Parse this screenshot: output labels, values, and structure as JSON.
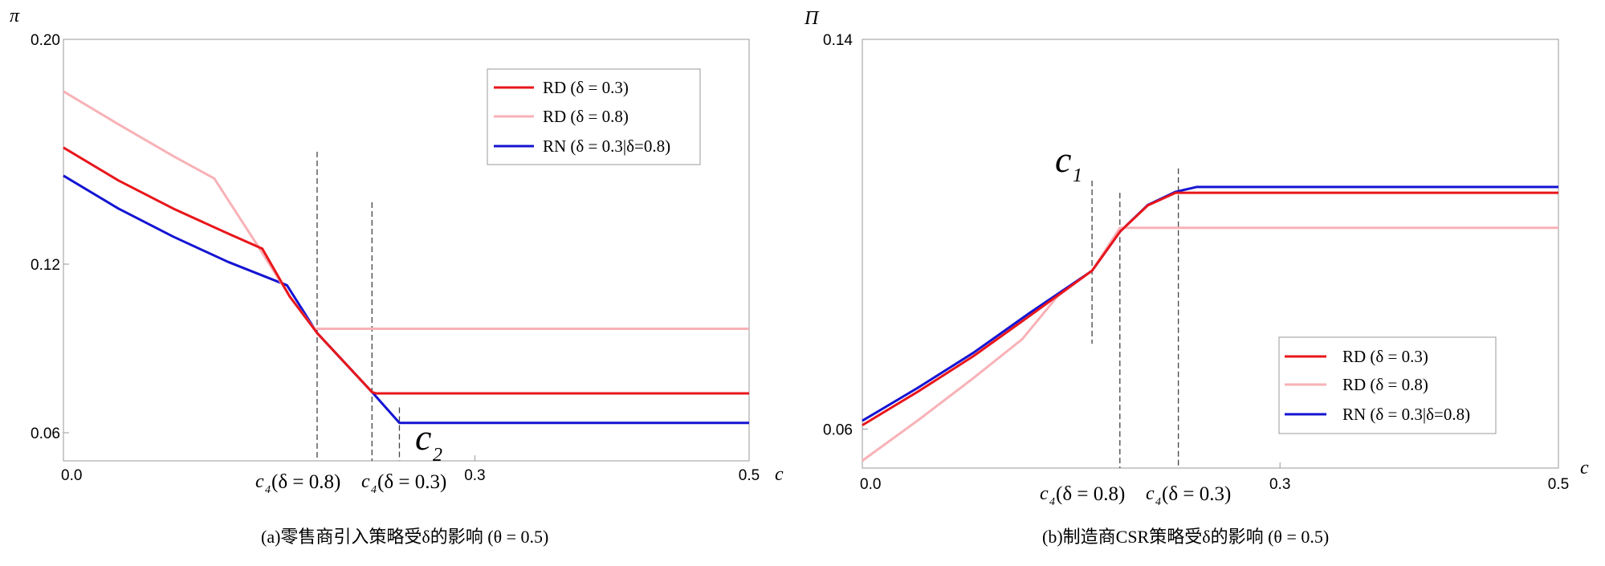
{
  "chart_data": [
    {
      "type": "line",
      "panel": "a",
      "caption": "(a)零售商引入策略受δ的影响 (θ = 0.5)",
      "ylabel": "π",
      "xlabel": "c",
      "xlim": [
        0,
        0.5
      ],
      "ylim": [
        0.05,
        0.2
      ],
      "yticks": [
        "0.20",
        "0.12",
        "0.06"
      ],
      "ytick_values": [
        0.2,
        0.12,
        0.06
      ],
      "xticks": [
        "0.0",
        "0.3",
        "0.5"
      ],
      "xtick_values": [
        0.0,
        0.3,
        0.5
      ],
      "series": [
        {
          "name": "RD (δ = 0.3)",
          "color": "#e8161b",
          "x": [
            0,
            0.04,
            0.08,
            0.12,
            0.145,
            0.165,
            0.185,
            0.225,
            0.228,
            0.5
          ],
          "y": [
            0.1615,
            0.1498,
            0.1398,
            0.1309,
            0.1255,
            0.1085,
            0.0955,
            0.0745,
            0.074,
            0.074
          ]
        },
        {
          "name": "RD (δ = 0.8)",
          "color": "#f8b2b7",
          "x": [
            0,
            0.04,
            0.08,
            0.11,
            0.145,
            0.165,
            0.183,
            0.187,
            0.5
          ],
          "y": [
            0.1815,
            0.1698,
            0.1585,
            0.1505,
            0.124,
            0.1085,
            0.097,
            0.097,
            0.097
          ]
        },
        {
          "name": "RN (δ = 0.3|δ=0.8)",
          "color": "#1414d2",
          "x": [
            0,
            0.04,
            0.08,
            0.12,
            0.163,
            0.185,
            0.225,
            0.245,
            0.5
          ],
          "y": [
            0.1515,
            0.1398,
            0.1298,
            0.1208,
            0.1125,
            0.0955,
            0.0745,
            0.0635,
            0.0635
          ]
        }
      ],
      "vlines": [
        {
          "x": 0.185,
          "y_top": 0.16
        },
        {
          "x": 0.225,
          "y_top": 0.142
        },
        {
          "x": 0.245,
          "y_top": 0.069
        }
      ],
      "annotations": [
        "c",
        "2",
        "c",
        "4",
        "(δ = 0.8)",
        "c",
        "4",
        "(δ = 0.3)"
      ],
      "legend": [
        "RD (δ = 0.3)",
        "RD (δ = 0.8)",
        "RN (δ = 0.3|δ=0.8)"
      ]
    },
    {
      "type": "line",
      "panel": "b",
      "caption": "(b)制造商CSR策略受δ的影响 (θ = 0.5)",
      "ylabel": "Π",
      "xlabel": "c",
      "xlim": [
        0,
        0.5
      ],
      "ylim": [
        0.052,
        0.14
      ],
      "yticks": [
        "0.14",
        "0.06"
      ],
      "ytick_values": [
        0.14,
        0.06
      ],
      "xticks": [
        "0.0",
        "0.3",
        "0.5"
      ],
      "xtick_values": [
        0.0,
        0.3,
        0.5
      ],
      "series": [
        {
          "name": "RD (δ = 0.3)",
          "color": "#e8161b",
          "x": [
            0,
            0.04,
            0.08,
            0.12,
            0.165,
            0.185,
            0.205,
            0.225,
            0.23,
            0.5
          ],
          "y": [
            0.0608,
            0.0677,
            0.075,
            0.0832,
            0.0925,
            0.1005,
            0.1059,
            0.1085,
            0.1085,
            0.1085
          ]
        },
        {
          "name": "RD (δ = 0.8)",
          "color": "#f8b2b7",
          "x": [
            0,
            0.04,
            0.08,
            0.115,
            0.14,
            0.165,
            0.185,
            0.5
          ],
          "y": [
            0.0535,
            0.0618,
            0.0705,
            0.0785,
            0.0872,
            0.0925,
            0.1013,
            0.1013
          ]
        },
        {
          "name": "RN (δ = 0.3|δ=0.8)",
          "color": "#1414d2",
          "x": [
            0,
            0.04,
            0.08,
            0.12,
            0.165,
            0.185,
            0.205,
            0.225,
            0.24,
            0.5
          ],
          "y": [
            0.0617,
            0.0685,
            0.0757,
            0.0838,
            0.0925,
            0.1005,
            0.106,
            0.1087,
            0.1097,
            0.1097
          ]
        }
      ],
      "vlines": [
        {
          "x": 0.165,
          "y_top": 0.111,
          "y_bottom": 0.0775
        },
        {
          "x": 0.185,
          "y_top": 0.1085
        },
        {
          "x": 0.227,
          "y_top": 0.1135
        }
      ],
      "annotations": [
        "c",
        "1",
        "c",
        "4",
        "(δ = 0.8)",
        "c",
        "4",
        "(δ = 0.3)"
      ],
      "legend": [
        "RD (δ = 0.3)",
        "RD (δ = 0.8)",
        "RN (δ = 0.3|δ=0.8)"
      ]
    }
  ]
}
